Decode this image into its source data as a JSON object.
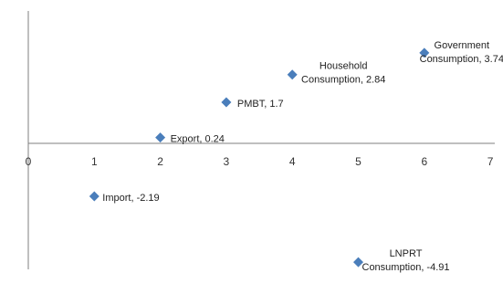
{
  "chart_data": {
    "type": "scatter",
    "title": "",
    "xlabel": "",
    "ylabel": "",
    "xlim": [
      0,
      7
    ],
    "ylim": [
      -6,
      5
    ],
    "x_ticks": [
      "0",
      "1",
      "2",
      "3",
      "4",
      "5",
      "6",
      "7"
    ],
    "grid": false,
    "legend": "none",
    "marker": "diamond",
    "marker_color": "#4a7ebb",
    "points": [
      {
        "x": 1,
        "y": -2.19,
        "label": [
          "Import, -2.19"
        ]
      },
      {
        "x": 2,
        "y": 0.24,
        "label": [
          "Export, 0.24"
        ]
      },
      {
        "x": 3,
        "y": 1.7,
        "label": [
          "PMBT, 1.7"
        ]
      },
      {
        "x": 4,
        "y": 2.84,
        "label": [
          "Household",
          "Consumption, 2.84"
        ]
      },
      {
        "x": 5,
        "y": -4.91,
        "label": [
          "LNPRT",
          "Consumption, -4.91"
        ]
      },
      {
        "x": 6,
        "y": 3.74,
        "label": [
          "Government",
          "Consumption, 3.74"
        ]
      }
    ]
  }
}
